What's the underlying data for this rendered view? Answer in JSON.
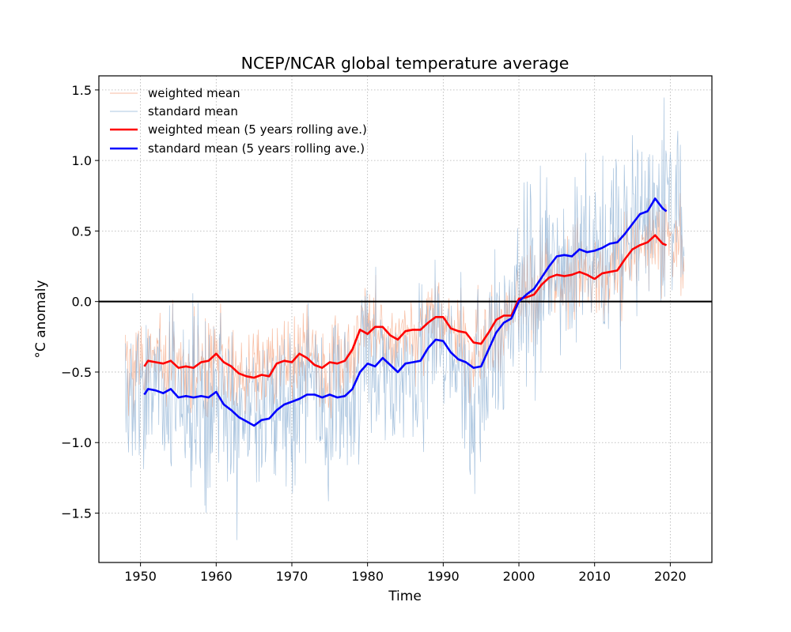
{
  "chart_data": {
    "type": "line",
    "title": "NCEP/NCAR global temperature average",
    "xlabel": "Time",
    "ylabel": "°C anomaly",
    "xlim": [
      1944.5,
      2025.5
    ],
    "ylim": [
      -1.85,
      1.6
    ],
    "xticks": [
      1950,
      1960,
      1970,
      1980,
      1990,
      2000,
      2010,
      2020
    ],
    "xtick_labels": [
      "1950",
      "1960",
      "1970",
      "1980",
      "1990",
      "2000",
      "2010",
      "2020"
    ],
    "yticks": [
      -1.5,
      -1.0,
      -0.5,
      0.0,
      0.5,
      1.0,
      1.5
    ],
    "ytick_labels": [
      "−1.5",
      "−1.0",
      "−0.5",
      "0.0",
      "0.5",
      "1.0",
      "1.5"
    ],
    "grid": true,
    "grid_style": "dotted",
    "hline": {
      "y": 0.0,
      "color": "#000000"
    },
    "legend_position": "top-left",
    "series": [
      {
        "name": "weighted mean",
        "color": "#f4a582",
        "style": "thin-monthly",
        "x_range": [
          1948.0,
          2021.8
        ],
        "approximated": true,
        "note": "monthly raw values, amplitude ~0.15-0.35 around rolling mean; not digitised, generated for rendering"
      },
      {
        "name": "standard mean",
        "color": "#92b4d6",
        "style": "thin-monthly",
        "x_range": [
          1948.0,
          2021.8
        ],
        "approximated": true,
        "note": "monthly raw values, amplitude ~0.3-0.6 around rolling mean; not digitised, generated for rendering"
      },
      {
        "name": "weighted mean (5 years rolling ave.)",
        "color": "#ff0000",
        "style": "thick",
        "x": [
          1950.5,
          1951,
          1952,
          1953,
          1954,
          1955,
          1956,
          1957,
          1958,
          1959,
          1960,
          1961,
          1962,
          1963,
          1964,
          1965,
          1966,
          1967,
          1968,
          1969,
          1970,
          1971,
          1972,
          1973,
          1974,
          1975,
          1976,
          1977,
          1978,
          1979,
          1980,
          1981,
          1982,
          1983,
          1984,
          1985,
          1986,
          1987,
          1988,
          1989,
          1990,
          1991,
          1992,
          1993,
          1994,
          1995,
          1996,
          1997,
          1998,
          1999,
          2000,
          2001,
          2002,
          2003,
          2004,
          2005,
          2006,
          2007,
          2008,
          2009,
          2010,
          2011,
          2012,
          2013,
          2014,
          2015,
          2016,
          2017,
          2018,
          2019,
          2019.5
        ],
        "y": [
          -0.46,
          -0.42,
          -0.43,
          -0.44,
          -0.42,
          -0.47,
          -0.46,
          -0.47,
          -0.43,
          -0.42,
          -0.37,
          -0.43,
          -0.46,
          -0.51,
          -0.53,
          -0.54,
          -0.52,
          -0.53,
          -0.44,
          -0.42,
          -0.43,
          -0.37,
          -0.4,
          -0.45,
          -0.47,
          -0.43,
          -0.44,
          -0.42,
          -0.34,
          -0.2,
          -0.23,
          -0.18,
          -0.18,
          -0.24,
          -0.27,
          -0.21,
          -0.2,
          -0.2,
          -0.15,
          -0.11,
          -0.11,
          -0.19,
          -0.21,
          -0.22,
          -0.29,
          -0.3,
          -0.22,
          -0.13,
          -0.1,
          -0.1,
          0.02,
          0.03,
          0.05,
          0.12,
          0.17,
          0.19,
          0.18,
          0.19,
          0.21,
          0.19,
          0.16,
          0.2,
          0.21,
          0.22,
          0.3,
          0.37,
          0.4,
          0.42,
          0.47,
          0.41,
          0.4
        ]
      },
      {
        "name": "standard mean (5 years rolling ave.)",
        "color": "#0000ff",
        "style": "thick",
        "x": [
          1950.5,
          1951,
          1952,
          1953,
          1954,
          1955,
          1956,
          1957,
          1958,
          1959,
          1960,
          1961,
          1962,
          1963,
          1964,
          1965,
          1966,
          1967,
          1968,
          1969,
          1970,
          1971,
          1972,
          1973,
          1974,
          1975,
          1976,
          1977,
          1978,
          1979,
          1980,
          1981,
          1982,
          1983,
          1984,
          1985,
          1986,
          1987,
          1988,
          1989,
          1990,
          1991,
          1992,
          1993,
          1994,
          1995,
          1996,
          1997,
          1998,
          1999,
          2000,
          2001,
          2002,
          2003,
          2004,
          2005,
          2006,
          2007,
          2008,
          2009,
          2010,
          2011,
          2012,
          2013,
          2014,
          2015,
          2016,
          2017,
          2018,
          2019,
          2019.5
        ],
        "y": [
          -0.66,
          -0.62,
          -0.63,
          -0.65,
          -0.62,
          -0.68,
          -0.67,
          -0.68,
          -0.67,
          -0.68,
          -0.64,
          -0.73,
          -0.77,
          -0.82,
          -0.85,
          -0.88,
          -0.84,
          -0.83,
          -0.77,
          -0.73,
          -0.71,
          -0.69,
          -0.66,
          -0.66,
          -0.68,
          -0.66,
          -0.68,
          -0.67,
          -0.62,
          -0.5,
          -0.44,
          -0.46,
          -0.4,
          -0.45,
          -0.5,
          -0.44,
          -0.43,
          -0.42,
          -0.33,
          -0.27,
          -0.28,
          -0.36,
          -0.41,
          -0.43,
          -0.47,
          -0.46,
          -0.34,
          -0.22,
          -0.15,
          -0.12,
          0.0,
          0.05,
          0.09,
          0.17,
          0.25,
          0.32,
          0.33,
          0.32,
          0.37,
          0.35,
          0.36,
          0.38,
          0.41,
          0.42,
          0.48,
          0.55,
          0.62,
          0.64,
          0.73,
          0.66,
          0.64
        ]
      }
    ]
  }
}
